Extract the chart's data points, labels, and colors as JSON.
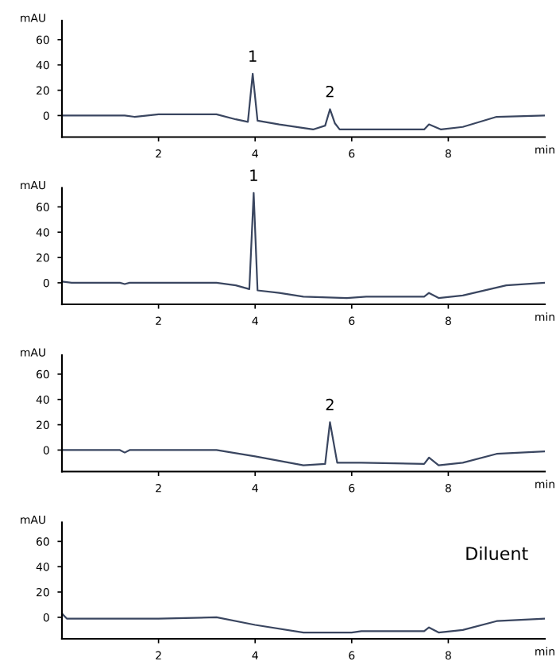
{
  "chart_data": [
    {
      "type": "line",
      "xlabel": "min",
      "ylabel": "mAU",
      "xlim": [
        0,
        10
      ],
      "xticks": [
        2,
        4,
        6,
        8
      ],
      "ylim": [
        -17,
        75
      ],
      "yticks": [
        0,
        20,
        40,
        60
      ],
      "grid": false,
      "legend": false,
      "marker": "none",
      "line_style": "solid",
      "series": [
        {
          "color": "#3a4660",
          "x": [
            0,
            1.3,
            1.5,
            2,
            3.2,
            3.6,
            3.85,
            3.95,
            4.05,
            4.5,
            5.2,
            5.45,
            5.55,
            5.65,
            5.75,
            6.5,
            7.5,
            7.6,
            7.85,
            8.3,
            9.0,
            10
          ],
          "values": [
            0,
            0,
            -1,
            1,
            1,
            -3,
            -5,
            33,
            -4,
            -7,
            -11,
            -8,
            5,
            -6,
            -11,
            -11,
            -11,
            -7,
            -11,
            -9,
            -1,
            0
          ]
        }
      ],
      "annotations": [
        {
          "text": "1",
          "x": 3.95,
          "y": 33
        },
        {
          "text": "2",
          "x": 5.55,
          "y": 5
        }
      ]
    },
    {
      "type": "line",
      "xlabel": "min",
      "ylabel": "mAU",
      "xlim": [
        0,
        10
      ],
      "xticks": [
        2,
        4,
        6,
        8
      ],
      "ylim": [
        -17,
        75
      ],
      "yticks": [
        0,
        20,
        40,
        60
      ],
      "grid": false,
      "legend": false,
      "marker": "none",
      "line_style": "solid",
      "series": [
        {
          "color": "#3a4660",
          "x": [
            0,
            0.2,
            1.2,
            1.3,
            1.4,
            3.2,
            3.6,
            3.88,
            3.97,
            4.05,
            4.5,
            5.0,
            5.9,
            6.3,
            7.5,
            7.6,
            7.8,
            8.3,
            9.2,
            10
          ],
          "values": [
            1,
            0,
            0,
            -1,
            0,
            0,
            -2,
            -5,
            71,
            -6,
            -8,
            -11,
            -12,
            -11,
            -11,
            -8,
            -12,
            -10,
            -2,
            0
          ]
        }
      ],
      "annotations": [
        {
          "text": "1",
          "x": 3.97,
          "y": 71
        }
      ]
    },
    {
      "type": "line",
      "xlabel": "min",
      "ylabel": "mAU",
      "xlim": [
        0,
        10
      ],
      "xticks": [
        2,
        4,
        6,
        8
      ],
      "ylim": [
        -17,
        75
      ],
      "yticks": [
        0,
        20,
        40,
        60
      ],
      "grid": false,
      "legend": false,
      "marker": "none",
      "line_style": "solid",
      "series": [
        {
          "color": "#3a4660",
          "x": [
            0,
            1.2,
            1.3,
            1.4,
            3.2,
            4.0,
            5.0,
            5.45,
            5.55,
            5.7,
            6.2,
            7.5,
            7.6,
            7.8,
            8.3,
            9.0,
            10
          ],
          "values": [
            0,
            0,
            -2,
            0,
            0,
            -5,
            -12,
            -11,
            22,
            -10,
            -10,
            -11,
            -6,
            -12,
            -10,
            -3,
            -1
          ]
        }
      ],
      "annotations": [
        {
          "text": "2",
          "x": 5.55,
          "y": 22
        }
      ]
    },
    {
      "type": "line",
      "xlabel": "min",
      "ylabel": "mAU",
      "xlim": [
        0,
        10
      ],
      "xticks": [
        2,
        4,
        6,
        8
      ],
      "ylim": [
        -17,
        75
      ],
      "yticks": [
        0,
        20,
        40,
        60
      ],
      "grid": false,
      "legend": false,
      "marker": "none",
      "line_style": "solid",
      "series": [
        {
          "color": "#3a4660",
          "x": [
            0,
            0.1,
            1.0,
            2.0,
            3.2,
            4.0,
            5.0,
            6.0,
            6.2,
            7.5,
            7.6,
            7.8,
            8.3,
            9.0,
            10
          ],
          "values": [
            3,
            -1,
            -1,
            -1,
            0,
            -6,
            -12,
            -12,
            -11,
            -11,
            -8,
            -12,
            -10,
            -3,
            -1
          ]
        }
      ],
      "annotations": [
        "Diluent"
      ]
    }
  ]
}
